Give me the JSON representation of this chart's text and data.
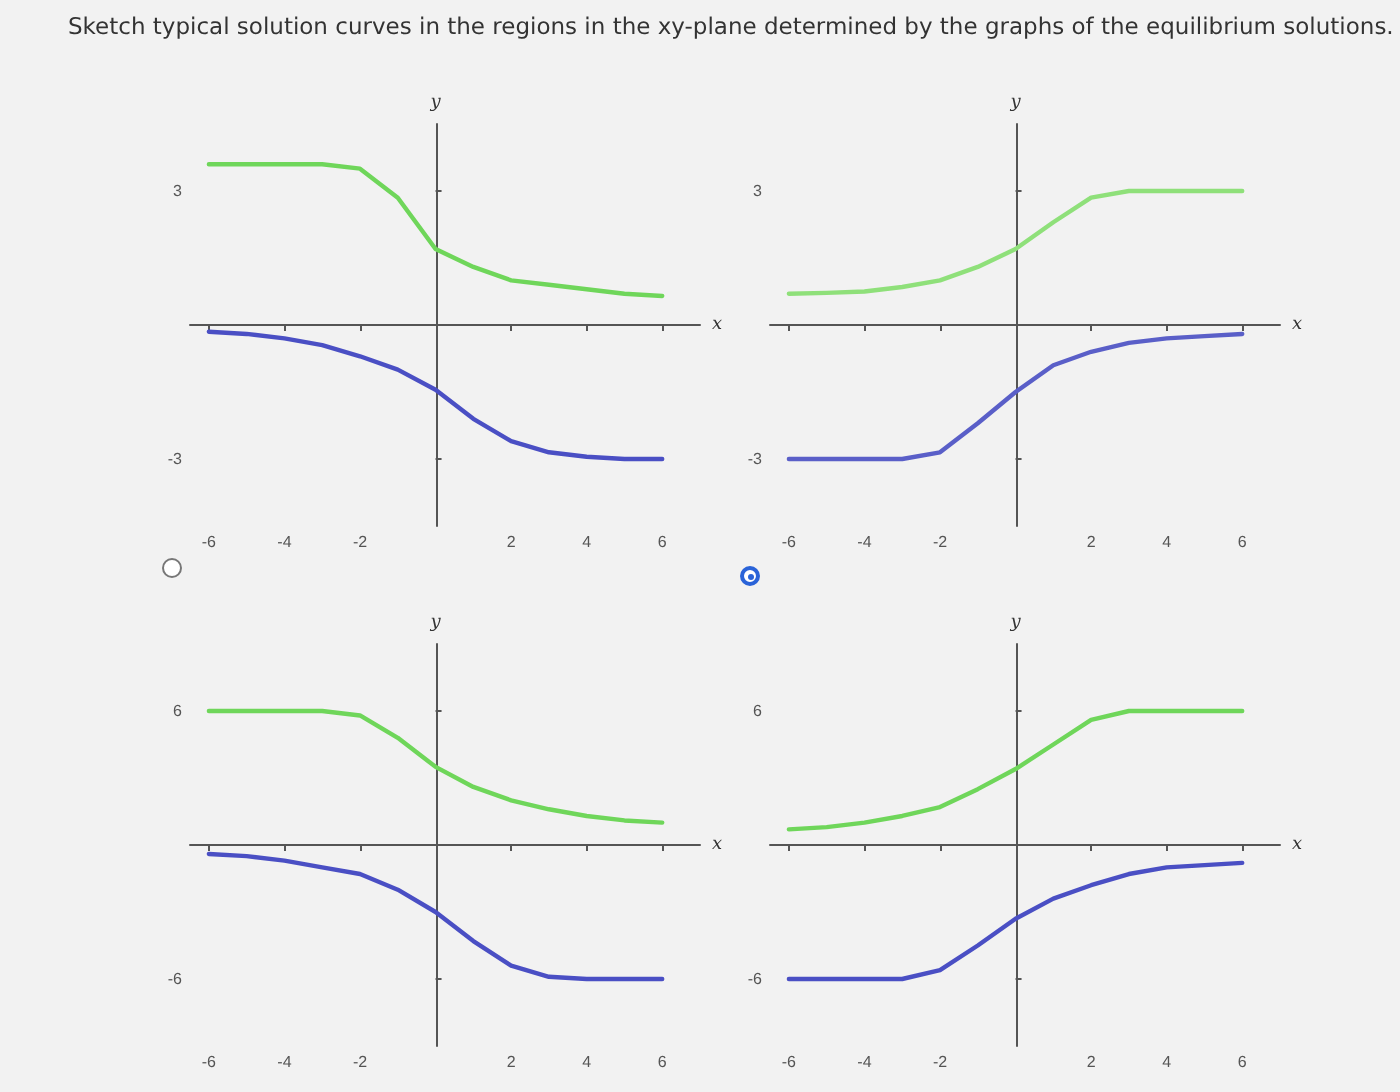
{
  "chart_data": [
    {
      "type": "line",
      "title": "Sketch typical solution curves in the regions in the xy-plane determined by the graphs of the equilibrium solutions.",
      "xlabel": "x",
      "ylabel": "y",
      "x": [
        -6,
        -5,
        -4,
        -3,
        -2,
        -1,
        0,
        1,
        2,
        3,
        4,
        5,
        6
      ],
      "marker": "none",
      "xlim": [
        -6.5,
        7
      ],
      "xticks": [
        -6,
        -4,
        -2,
        2,
        4,
        6
      ],
      "ylim": [
        -4.5,
        4.5
      ],
      "yticks": [
        -3,
        3
      ],
      "series": [
        {
          "color": "#6fd65a",
          "values": [
            3.6,
            3.6,
            3.6,
            3.6,
            3.5,
            2.85,
            1.7,
            1.3,
            1.0,
            0.9,
            0.8,
            0.7,
            0.65
          ]
        },
        {
          "color": "#4a4fc4",
          "values": [
            -0.15,
            -0.2,
            -0.3,
            -0.45,
            -0.7,
            -1.0,
            -1.45,
            -2.1,
            -2.6,
            -2.85,
            -2.95,
            -3,
            -3
          ]
        }
      ]
    },
    {
      "type": "line",
      "xlabel": "x",
      "ylabel": "y",
      "x": [
        -6,
        -5,
        -4,
        -3,
        -2,
        -1,
        0,
        1,
        2,
        3,
        4,
        5,
        6
      ],
      "marker": "none",
      "xlim": [
        -6.5,
        7
      ],
      "xticks": [
        -6,
        -4,
        -2,
        2,
        4,
        6
      ],
      "ylim": [
        -4.5,
        4.5
      ],
      "yticks": [
        -3,
        3
      ],
      "series": [
        {
          "color": "#8fe07a",
          "values": [
            0.7,
            0.72,
            0.75,
            0.85,
            1.0,
            1.3,
            1.7,
            2.3,
            2.85,
            3,
            3,
            3,
            3
          ]
        },
        {
          "color": "#5a5fc8",
          "values": [
            -3,
            -3,
            -3,
            -3,
            -2.85,
            -2.2,
            -1.5,
            -0.9,
            -0.6,
            -0.4,
            -0.3,
            -0.25,
            -0.2
          ]
        }
      ]
    },
    {
      "type": "line",
      "xlabel": "x",
      "ylabel": "y",
      "x": [
        -6,
        -5,
        -4,
        -3,
        -2,
        -1,
        0,
        1,
        2,
        3,
        4,
        5,
        6
      ],
      "marker": "none",
      "xlim": [
        -6.5,
        7
      ],
      "xticks": [
        -6,
        -4,
        -2,
        2,
        4,
        6
      ],
      "ylim": [
        -9,
        9
      ],
      "yticks": [
        -6,
        6
      ],
      "series": [
        {
          "color": "#6fd65a",
          "values": [
            6,
            6,
            6,
            6,
            5.8,
            4.8,
            3.5,
            2.6,
            2.0,
            1.6,
            1.3,
            1.1,
            1.0
          ]
        },
        {
          "color": "#4a4fc4",
          "values": [
            -0.4,
            -0.5,
            -0.7,
            -1.0,
            -1.3,
            -2.0,
            -3.0,
            -4.3,
            -5.4,
            -5.9,
            -6,
            -6,
            -6
          ]
        }
      ]
    },
    {
      "type": "line",
      "xlabel": "x",
      "ylabel": "y",
      "x": [
        -6,
        -5,
        -4,
        -3,
        -2,
        -1,
        0,
        1,
        2,
        3,
        4,
        5,
        6
      ],
      "marker": "none",
      "xlim": [
        -6.5,
        7
      ],
      "xticks": [
        -6,
        -4,
        -2,
        2,
        4,
        6
      ],
      "ylim": [
        -9,
        9
      ],
      "yticks": [
        -6,
        6
      ],
      "series": [
        {
          "color": "#6fd65a",
          "values": [
            0.7,
            0.8,
            1.0,
            1.3,
            1.7,
            2.5,
            3.4,
            4.5,
            5.6,
            6,
            6,
            6,
            6
          ]
        },
        {
          "color": "#4a4fc4",
          "values": [
            -6,
            -6,
            -6,
            -6,
            -5.6,
            -4.5,
            -3.3,
            -2.4,
            -1.8,
            -1.3,
            -1.0,
            -0.9,
            -0.8
          ]
        }
      ]
    }
  ]
}
